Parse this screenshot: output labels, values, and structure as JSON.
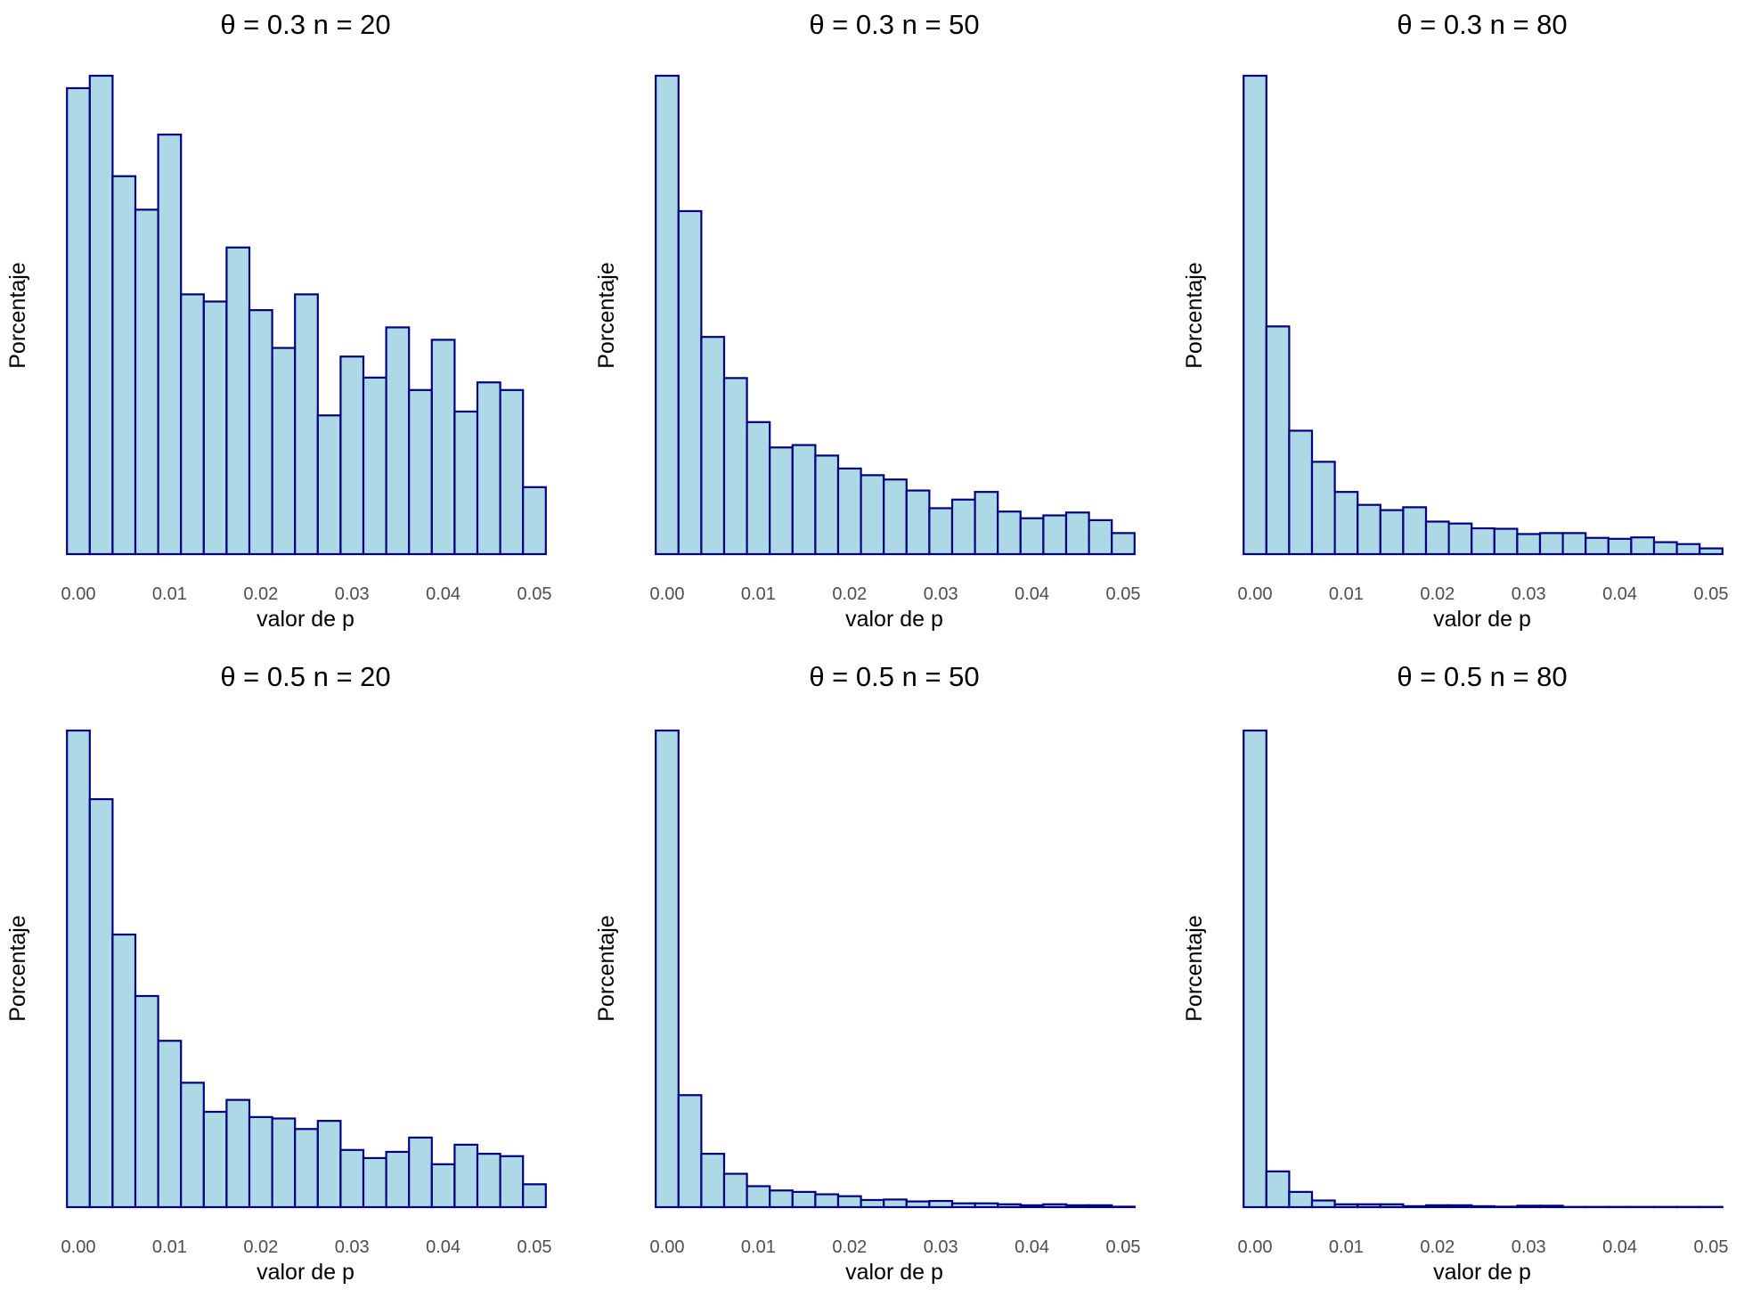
{
  "chart_data": [
    {
      "type": "bar",
      "title": "θ = 0.3 n = 20",
      "xlabel": "valor de p",
      "ylabel": "Porcentaje",
      "x_ticks": [
        "0.00",
        "0.01",
        "0.02",
        "0.03",
        "0.04",
        "0.05"
      ],
      "xlim": [
        -0.00125,
        0.05125
      ],
      "bin_width": 0.0025,
      "y_units": "relative height (% of tallest bar); no y tick labels shown",
      "values": [
        97.4,
        100,
        79.0,
        72.0,
        87.7,
        54.3,
        52.8,
        64.1,
        51.0,
        43.1,
        54.3,
        29.0,
        41.3,
        36.9,
        47.4,
        34.3,
        44.8,
        29.8,
        35.9,
        34.3,
        14.0
      ]
    },
    {
      "type": "bar",
      "title": "θ = 0.3 n = 50",
      "xlabel": "valor de p",
      "ylabel": "Porcentaje",
      "x_ticks": [
        "0.00",
        "0.01",
        "0.02",
        "0.03",
        "0.04",
        "0.05"
      ],
      "xlim": [
        -0.00125,
        0.05125
      ],
      "bin_width": 0.0025,
      "y_units": "relative height (% of tallest bar); no y tick labels shown",
      "values": [
        100,
        71.7,
        45.4,
        36.8,
        27.6,
        22.3,
        22.8,
        20.6,
        17.9,
        16.5,
        15.6,
        13.3,
        9.6,
        11.4,
        13.0,
        8.9,
        7.5,
        8.1,
        8.7,
        7.1,
        4.4
      ]
    },
    {
      "type": "bar",
      "title": "θ = 0.3 n = 80",
      "xlabel": "valor de p",
      "ylabel": "Porcentaje",
      "x_ticks": [
        "0.00",
        "0.01",
        "0.02",
        "0.03",
        "0.04",
        "0.05"
      ],
      "xlim": [
        -0.00125,
        0.05125
      ],
      "bin_width": 0.0025,
      "y_units": "relative height (% of tallest bar); no y tick labels shown",
      "values": [
        100,
        47.6,
        25.8,
        19.3,
        13.0,
        10.3,
        9.2,
        9.8,
        6.8,
        6.4,
        5.4,
        5.3,
        4.2,
        4.4,
        4.4,
        3.4,
        3.2,
        3.5,
        2.5,
        2.1,
        1.2
      ]
    },
    {
      "type": "bar",
      "title": "θ = 0.5 n = 20",
      "xlabel": "valor de p",
      "ylabel": "Porcentaje",
      "x_ticks": [
        "0.00",
        "0.01",
        "0.02",
        "0.03",
        "0.04",
        "0.05"
      ],
      "xlim": [
        -0.00125,
        0.05125
      ],
      "bin_width": 0.0025,
      "y_units": "relative height (% of tallest bar); no y tick labels shown",
      "values": [
        100,
        85.6,
        57.2,
        44.3,
        34.9,
        26.1,
        20.0,
        22.5,
        18.9,
        18.6,
        16.4,
        18.1,
        12.0,
        10.3,
        11.6,
        14.6,
        9.0,
        13.1,
        11.2,
        10.7,
        4.8
      ]
    },
    {
      "type": "bar",
      "title": "θ = 0.5 n = 50",
      "xlabel": "valor de p",
      "ylabel": "Porcentaje",
      "x_ticks": [
        "0.00",
        "0.01",
        "0.02",
        "0.03",
        "0.04",
        "0.05"
      ],
      "xlim": [
        -0.00125,
        0.05125
      ],
      "bin_width": 0.0025,
      "y_units": "relative height (% of tallest bar); no y tick labels shown",
      "values": [
        100,
        23.5,
        11.2,
        7.0,
        4.4,
        3.5,
        3.2,
        2.7,
        2.3,
        1.5,
        1.6,
        1.2,
        1.3,
        0.8,
        0.8,
        0.6,
        0.4,
        0.6,
        0.4,
        0.4,
        0.1
      ]
    },
    {
      "type": "bar",
      "title": "θ = 0.5 n = 80",
      "xlabel": "valor de p",
      "ylabel": "Porcentaje",
      "x_ticks": [
        "0.00",
        "0.01",
        "0.02",
        "0.03",
        "0.04",
        "0.05"
      ],
      "xlim": [
        -0.00125,
        0.05125
      ],
      "bin_width": 0.0025,
      "y_units": "relative height (% of tallest bar); no y tick labels shown",
      "values": [
        100,
        7.5,
        3.2,
        1.4,
        0.6,
        0.6,
        0.6,
        0.2,
        0.4,
        0.4,
        0.2,
        0.1,
        0.3,
        0.3,
        0.05,
        0.05,
        0.05,
        0.05,
        0.05,
        0.05,
        0.05
      ]
    }
  ],
  "colors": {
    "bar_fill": "#add8e6",
    "bar_stroke": "#000080",
    "tick_text": "#4d4d4d"
  }
}
